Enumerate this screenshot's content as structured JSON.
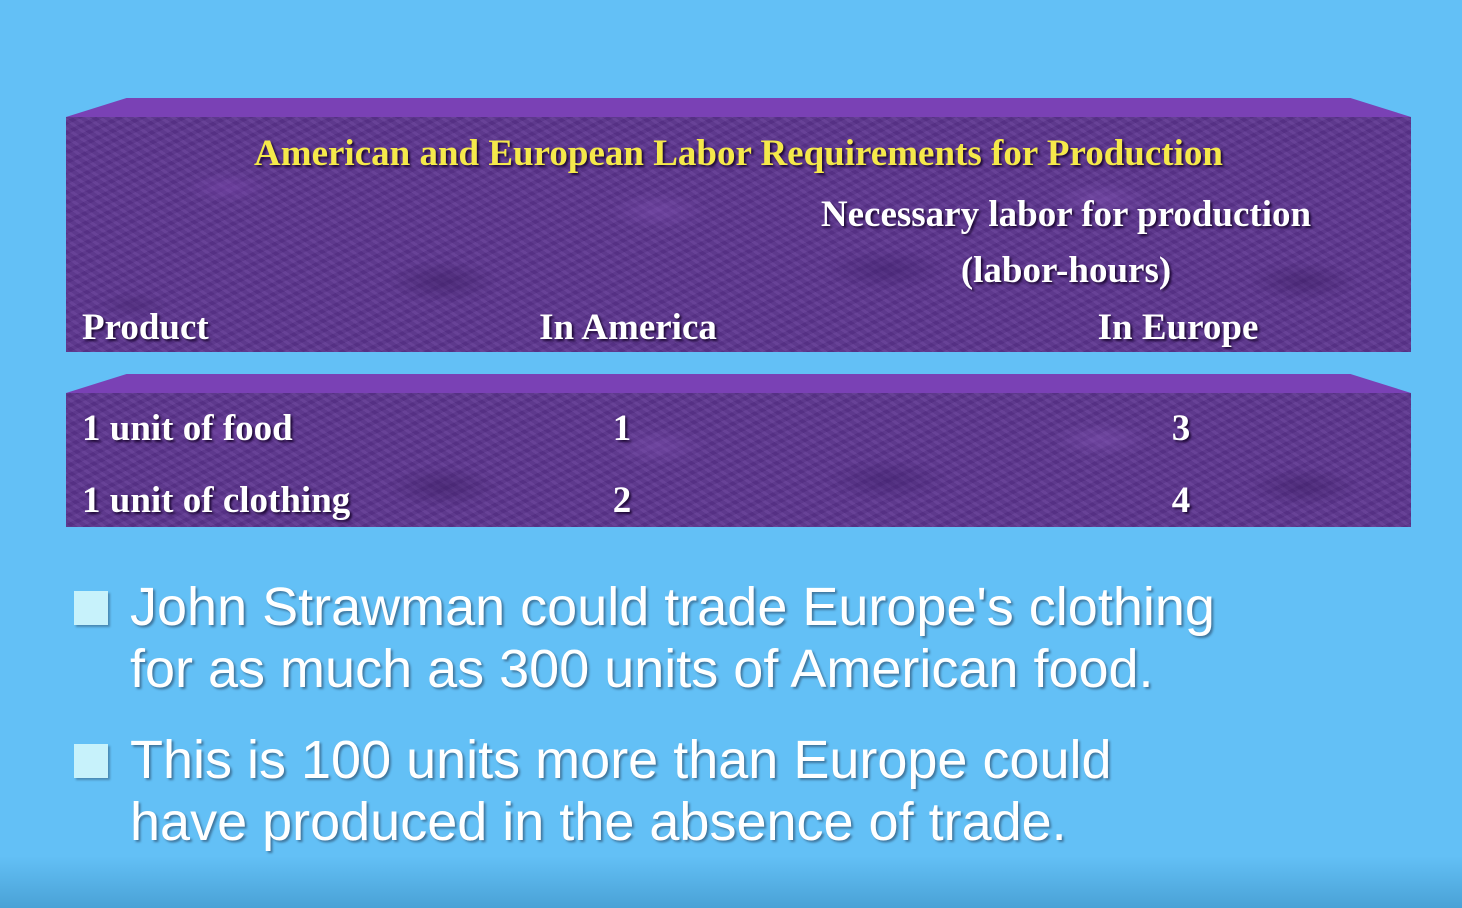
{
  "table": {
    "title": "American and European Labor Requirements for Production",
    "group_header_line1": "Necessary labor for production",
    "group_header_line2": "(labor-hours)",
    "columns": [
      "Product",
      "In America",
      "In Europe"
    ],
    "rows": [
      {
        "product": "1 unit of food",
        "america": "1",
        "europe": "3"
      },
      {
        "product": "1 unit of clothing",
        "america": "2",
        "europe": "4"
      }
    ]
  },
  "bullets": [
    {
      "line1": "John Strawman could trade Europe's clothing",
      "line2": "for as much as 300 units of American food."
    },
    {
      "line1": "This is 100 units more than Europe could",
      "line2": "have produced in the absence of trade."
    }
  ],
  "colors": {
    "background": "#63c0f6",
    "panel": "#5d3590",
    "title_text": "#f5e94a",
    "body_text": "#ffffff",
    "bullet_marker": "#c7f2fb"
  }
}
